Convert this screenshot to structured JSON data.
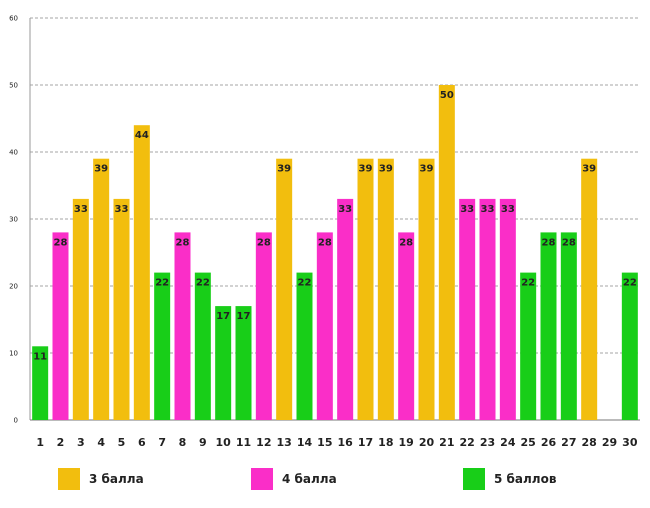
{
  "chart_data": {
    "type": "bar",
    "title": "",
    "xlabel": "",
    "ylabel": "",
    "ylim": [
      0,
      60
    ],
    "yticks": [
      0,
      10,
      20,
      30,
      40,
      50,
      60
    ],
    "grid": true,
    "legend_position": "bottom",
    "categories": [
      "1",
      "2",
      "3",
      "4",
      "5",
      "6",
      "7",
      "8",
      "9",
      "10",
      "11",
      "12",
      "13",
      "14",
      "15",
      "16",
      "17",
      "18",
      "19",
      "20",
      "21",
      "22",
      "23",
      "24",
      "25",
      "26",
      "27",
      "28",
      "29",
      "30"
    ],
    "series": [
      {
        "name": "3 балла",
        "color": "#F2BE0E",
        "values": [
          null,
          null,
          33,
          39,
          33,
          44,
          null,
          null,
          null,
          null,
          null,
          null,
          39,
          null,
          null,
          null,
          39,
          39,
          null,
          39,
          50,
          null,
          null,
          null,
          null,
          null,
          null,
          39,
          null,
          null
        ]
      },
      {
        "name": "4 балла",
        "color": "#FA2EC8",
        "values": [
          null,
          28,
          null,
          null,
          null,
          null,
          null,
          28,
          null,
          null,
          null,
          28,
          null,
          null,
          28,
          33,
          null,
          null,
          28,
          null,
          null,
          33,
          33,
          33,
          null,
          null,
          null,
          null,
          null,
          null
        ]
      },
      {
        "name": "5 баллов",
        "color": "#18CE18",
        "values": [
          11,
          null,
          null,
          null,
          null,
          null,
          22,
          null,
          22,
          17,
          17,
          null,
          null,
          22,
          null,
          null,
          null,
          null,
          null,
          null,
          null,
          null,
          null,
          null,
          22,
          28,
          28,
          null,
          null,
          22
        ]
      }
    ]
  }
}
